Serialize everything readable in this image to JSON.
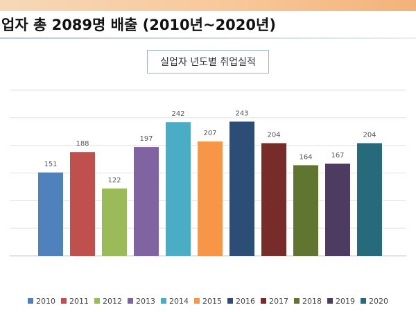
{
  "slide": {
    "headline": "업자 총 2089명 배출 (2010년~2020년)"
  },
  "chart_data": {
    "type": "bar",
    "title": "실업자 년도별 취업실적",
    "categories": [
      "2010",
      "2011",
      "2012",
      "2013",
      "2014",
      "2015",
      "2016",
      "2017",
      "2018",
      "2019",
      "2020"
    ],
    "values": [
      151,
      188,
      122,
      197,
      242,
      207,
      243,
      204,
      164,
      167,
      204
    ],
    "colors": [
      "#4f81bd",
      "#c0504d",
      "#9bbb59",
      "#8064a2",
      "#4bacc6",
      "#f79646",
      "#2c4d75",
      "#772c2a",
      "#5f7530",
      "#4d3b62",
      "#276a7c"
    ],
    "ylim": [
      0,
      300
    ],
    "grid": true,
    "legend": "bottom",
    "xlabel": "",
    "ylabel": ""
  }
}
